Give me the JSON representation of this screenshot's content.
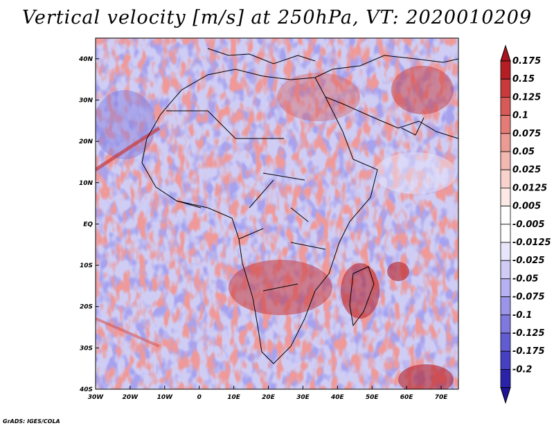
{
  "title": "Vertical velocity [m/s] at 250hPa, VT: 2020010209",
  "credit": "GrADS: IGES/COLA",
  "map": {
    "lon_range": [
      -30,
      75
    ],
    "lat_range": [
      -40,
      45
    ],
    "lon_ticks": [
      {
        "value": -30,
        "label": "30W"
      },
      {
        "value": -20,
        "label": "20W"
      },
      {
        "value": -10,
        "label": "10W"
      },
      {
        "value": 0,
        "label": "0"
      },
      {
        "value": 10,
        "label": "10E"
      },
      {
        "value": 20,
        "label": "20E"
      },
      {
        "value": 30,
        "label": "30E"
      },
      {
        "value": 40,
        "label": "40E"
      },
      {
        "value": 50,
        "label": "50E"
      },
      {
        "value": 60,
        "label": "60E"
      },
      {
        "value": 70,
        "label": "70E"
      }
    ],
    "lat_ticks": [
      {
        "value": 40,
        "label": "40N"
      },
      {
        "value": 30,
        "label": "30N"
      },
      {
        "value": 20,
        "label": "20N"
      },
      {
        "value": 10,
        "label": "10N"
      },
      {
        "value": 0,
        "label": "EQ"
      },
      {
        "value": -10,
        "label": "10S"
      },
      {
        "value": -20,
        "label": "20S"
      },
      {
        "value": -30,
        "label": "30S"
      },
      {
        "value": -40,
        "label": "40S"
      }
    ],
    "field_description_hidden": ""
  },
  "colorbar": {
    "levels": [
      {
        "label": "0.175",
        "color": "#b51e25"
      },
      {
        "label": "0.15",
        "color": "#c83a3c"
      },
      {
        "label": "0.125",
        "color": "#d85a58"
      },
      {
        "label": "0.1",
        "color": "#e47b76"
      },
      {
        "label": "0.075",
        "color": "#ec9a94"
      },
      {
        "label": "0.05",
        "color": "#f3b8b2"
      },
      {
        "label": "0.025",
        "color": "#f8d3ce"
      },
      {
        "label": "0.0125",
        "color": "#fce8e5"
      },
      {
        "label": "0.005",
        "color": "#ffffff"
      },
      {
        "label": "-0.005",
        "color": "#ffffff"
      },
      {
        "label": "-0.0125",
        "color": "#e8e6fa"
      },
      {
        "label": "-0.025",
        "color": "#d0ccf6"
      },
      {
        "label": "-0.05",
        "color": "#b6b1f0"
      },
      {
        "label": "-0.075",
        "color": "#9b95e8"
      },
      {
        "label": "-0.1",
        "color": "#7f79de"
      },
      {
        "label": "-0.125",
        "color": "#625cd2"
      },
      {
        "label": "-0.175",
        "color": "#4640c2"
      },
      {
        "label": "-0.2",
        "color": "#2a22a8"
      }
    ],
    "top_color": "#a8141d",
    "bottom_color": "#1f1596"
  }
}
